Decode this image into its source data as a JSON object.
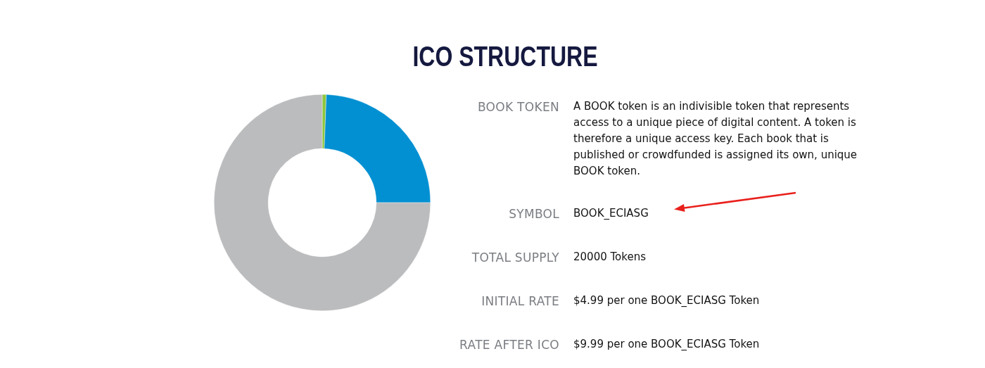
{
  "chart_data": [
    {
      "type": "donut",
      "title": "ICO STRUCTURE",
      "categories": [
        null,
        null,
        null
      ],
      "values": [
        0.6,
        24.4,
        75
      ],
      "colors": [
        "#8dc63f",
        "#0290d2",
        "#bbbcbe"
      ]
    },
    {
      "type": "other",
      "categories": [
        "BOOK TOKEN",
        "SYMBOL",
        "TOTAL SUPPLY",
        "INITIAL RATE",
        "RATE AFTER ICO"
      ],
      "value_labels": [
        "A BOOK token is an indivisible token that represents access to a unique piece of digital content. A token is therefore a unique access key. Each book that is published or crowdfunded is assigned its own, unique BOOK token.",
        "BOOK_ECIASG",
        "20000 Tokens",
        "$4.99 per one BOOK_ECIASG Token",
        "$9.99 per one BOOK_ECIASG Token"
      ]
    }
  ]
}
